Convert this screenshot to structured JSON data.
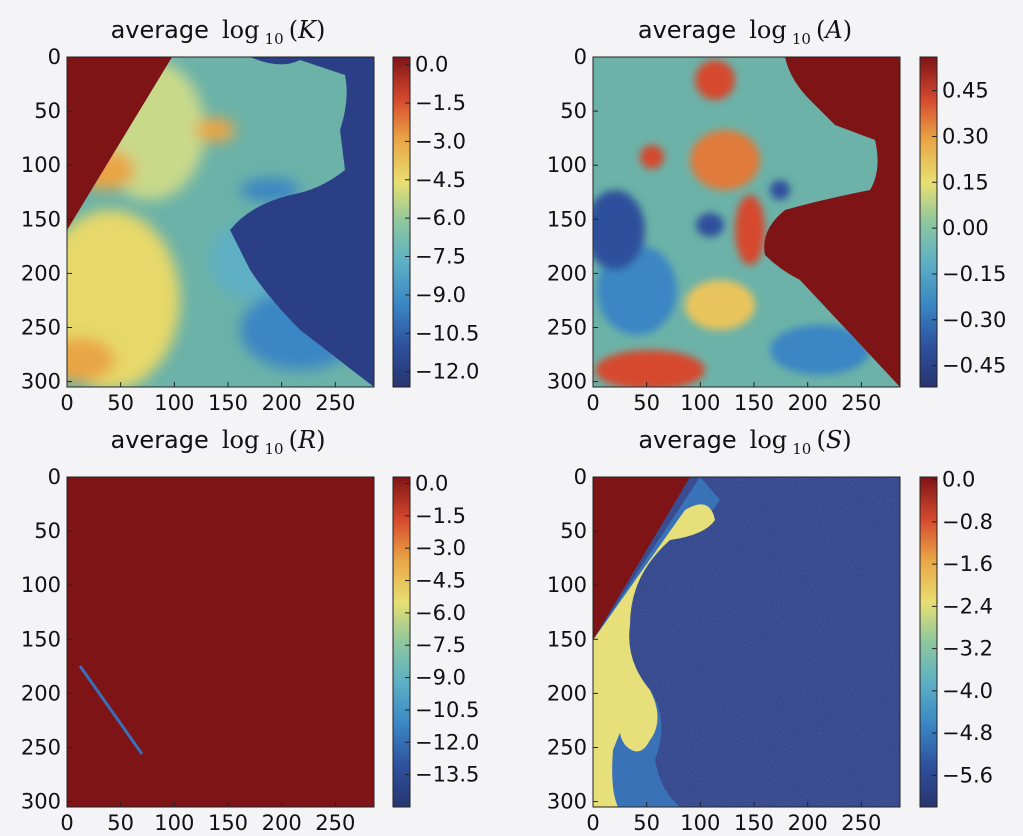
{
  "chart_data": [
    {
      "type": "heatmap",
      "title": {
        "word": "average",
        "func": "log",
        "sub": "10",
        "var": "K"
      },
      "x_ticks": [
        "0",
        "50",
        "100",
        "150",
        "200",
        "250"
      ],
      "y_ticks": [
        "0",
        "50",
        "100",
        "150",
        "200",
        "250",
        "300"
      ],
      "xlim": [
        0,
        286
      ],
      "ylim": [
        305,
        0
      ],
      "colorbar_ticks": [
        "0.0",
        "−1.5",
        "−3.0",
        "−4.5",
        "−6.0",
        "−7.5",
        "−9.0",
        "−10.5",
        "−12.0"
      ],
      "colorbar_range": [
        -12.6,
        0.3
      ]
    },
    {
      "type": "heatmap",
      "title": {
        "word": "average",
        "func": "log",
        "sub": "10",
        "var": "A"
      },
      "x_ticks": [
        "0",
        "50",
        "100",
        "150",
        "200",
        "250"
      ],
      "y_ticks": [
        "0",
        "50",
        "100",
        "150",
        "200",
        "250",
        "300"
      ],
      "xlim": [
        0,
        286
      ],
      "ylim": [
        305,
        0
      ],
      "colorbar_ticks": [
        "0.45",
        "0.30",
        "0.15",
        "0.00",
        "−0.15",
        "−0.30",
        "−0.45"
      ],
      "colorbar_range": [
        -0.52,
        0.56
      ]
    },
    {
      "type": "heatmap",
      "title": {
        "word": "average",
        "func": "log",
        "sub": "10",
        "var": "R"
      },
      "x_ticks": [
        "0",
        "50",
        "100",
        "150",
        "200",
        "250"
      ],
      "y_ticks": [
        "0",
        "50",
        "100",
        "150",
        "200",
        "250",
        "300"
      ],
      "xlim": [
        0,
        286
      ],
      "ylim": [
        305,
        0
      ],
      "colorbar_ticks": [
        "0.0",
        "−1.5",
        "−3.0",
        "−4.5",
        "−6.0",
        "−7.5",
        "−9.0",
        "−10.5",
        "−12.0",
        "−13.5"
      ],
      "colorbar_range": [
        -15.0,
        0.3
      ]
    },
    {
      "type": "heatmap",
      "title": {
        "word": "average",
        "func": "log",
        "sub": "10",
        "var": "S"
      },
      "x_ticks": [
        "0",
        "50",
        "100",
        "150",
        "200",
        "250"
      ],
      "y_ticks": [
        "0",
        "50",
        "100",
        "150",
        "200",
        "250",
        "300"
      ],
      "xlim": [
        0,
        286
      ],
      "ylim": [
        305,
        0
      ],
      "colorbar_ticks": [
        "0.0",
        "−0.8",
        "−1.6",
        "−2.4",
        "−3.2",
        "−4.0",
        "−4.8",
        "−5.6"
      ],
      "colorbar_range": [
        -6.2,
        0.05
      ]
    }
  ],
  "colors": {
    "dark_red": "#7f1416",
    "navy": "#2b3f86",
    "teal": "#6cb2a8",
    "yellow": "#e6df7a",
    "tick": "#111111"
  }
}
